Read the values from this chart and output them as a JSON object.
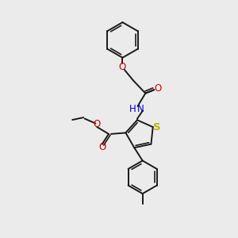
{
  "bg_color": "#ebebeb",
  "bond_color": "#1a1a1a",
  "S_color": "#b8b800",
  "N_color": "#0000cc",
  "O_color": "#cc0000",
  "line_width": 1.4,
  "font_size": 8.5,
  "fig_size": [
    3.0,
    3.0
  ],
  "dpi": 100,
  "xlim": [
    0,
    10
  ],
  "ylim": [
    0,
    10
  ]
}
